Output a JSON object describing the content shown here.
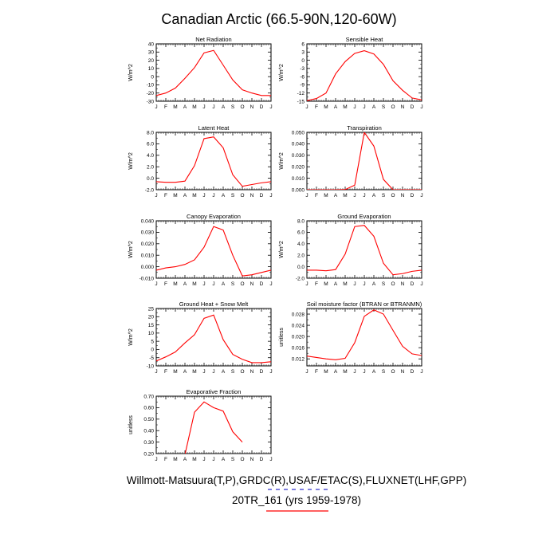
{
  "figure": {
    "title": "Canadian Arctic (66.5-90N,120-60W)",
    "footer_line1": "Willmott-Matsuura(T,P),GRDC(R),USAF/ETAC(S),FLUXNET(LHF,GPP)",
    "footer_line2": "20TR_161 (yrs 1959-1978)",
    "line_color": "#ff0000",
    "footer_underline_colors": [
      "#3333cc",
      "#ff0000"
    ]
  },
  "months": [
    "J",
    "F",
    "M",
    "A",
    "M",
    "J",
    "J",
    "A",
    "S",
    "O",
    "N",
    "D",
    "J"
  ],
  "chart_data": [
    {
      "type": "line",
      "title": "Net Radiation",
      "ylabel": "W/m^2",
      "ylim": [
        -30,
        40
      ],
      "yticks": [
        "40",
        "30",
        "20",
        "10",
        "0",
        "-10",
        "-20",
        "-30"
      ],
      "values": [
        -23,
        -20,
        -14,
        -2,
        11,
        29,
        32,
        14,
        -4,
        -16,
        -20,
        -23,
        -23
      ]
    },
    {
      "type": "line",
      "title": "Sensible Heat",
      "ylabel": "W/m^2",
      "ylim": [
        -15,
        6
      ],
      "yticks": [
        "6",
        "3",
        "0",
        "-3",
        "-6",
        "-9",
        "-12",
        "-15"
      ],
      "values": [
        -14.8,
        -14,
        -12,
        -5,
        -0.5,
        2.5,
        3.5,
        2.3,
        -1.5,
        -7.5,
        -11,
        -13.8,
        -14.5
      ]
    },
    {
      "type": "line",
      "title": "Latent Heat",
      "ylabel": "W/m^2",
      "ylim": [
        -2,
        8
      ],
      "yticks": [
        "8.0",
        "6.0",
        "4.0",
        "2.0",
        "0.0",
        "-2.0"
      ],
      "values": [
        -0.6,
        -0.7,
        -0.7,
        -0.5,
        2.2,
        6.9,
        7.2,
        5.3,
        0.6,
        -1.4,
        -1.1,
        -0.8,
        -0.6
      ]
    },
    {
      "type": "line",
      "title": "Transpiration",
      "ylabel": "W/m^2",
      "ylim": [
        0,
        0.05
      ],
      "yticks": [
        "0.050",
        "0.040",
        "0.030",
        "0.020",
        "0.010",
        "0.000"
      ],
      "values": [
        0,
        0,
        0,
        0,
        0.0001,
        0.004,
        0.05,
        0.038,
        0.009,
        0,
        0,
        0,
        0
      ]
    },
    {
      "type": "line",
      "title": "Canopy Evaporation",
      "ylabel": "W/m^2",
      "ylim": [
        -0.01,
        0.04
      ],
      "yticks": [
        "0.040",
        "0.030",
        "0.020",
        "0.010",
        "0.000",
        "-0.010"
      ],
      "values": [
        -0.003,
        -0.001,
        0,
        0.002,
        0.006,
        0.017,
        0.035,
        0.032,
        0.01,
        -0.008,
        -0.007,
        -0.005,
        -0.003
      ]
    },
    {
      "type": "line",
      "title": "Ground Evaporation",
      "ylabel": "W/m^2",
      "ylim": [
        -2,
        8
      ],
      "yticks": [
        "8.0",
        "6.0",
        "4.0",
        "2.0",
        "0.0",
        "-2.0"
      ],
      "values": [
        -0.6,
        -0.6,
        -0.7,
        -0.5,
        2.2,
        7.0,
        7.2,
        5.3,
        0.6,
        -1.4,
        -1.2,
        -0.8,
        -0.6
      ]
    },
    {
      "type": "line",
      "title": "Ground Heat + Snow Melt",
      "ylabel": "W/m^2",
      "ylim": [
        -10,
        25
      ],
      "yticks": [
        "25",
        "20",
        "15",
        "10",
        "5",
        "0",
        "-5",
        "-10"
      ],
      "values": [
        -7,
        -4.5,
        -1.5,
        4,
        9,
        19,
        21,
        6,
        -3,
        -6,
        -8,
        -8,
        -7.5
      ]
    },
    {
      "type": "line",
      "title": "Soil moisture factor (BTRAN or BTRANMN)",
      "ylabel": "unitless",
      "ylim": [
        0.0095,
        0.03
      ],
      "yticks": [
        "0.028",
        "0.024",
        "0.020",
        "0.016",
        "0.012"
      ],
      "values": [
        0.013,
        0.0125,
        0.012,
        0.0117,
        0.0122,
        0.0178,
        0.0272,
        0.0295,
        0.028,
        0.0222,
        0.0165,
        0.0138,
        0.0132
      ]
    },
    {
      "type": "line",
      "title": "Evaporative Fraction",
      "ylabel": "unitless",
      "ylim": [
        0.2,
        0.7
      ],
      "yticks": [
        "0.70",
        "0.60",
        "0.50",
        "0.40",
        "0.30",
        "0.20"
      ],
      "values": [
        null,
        null,
        null,
        0.19,
        0.56,
        0.65,
        0.6,
        0.57,
        0.39,
        0.3,
        null,
        null,
        null
      ]
    }
  ]
}
